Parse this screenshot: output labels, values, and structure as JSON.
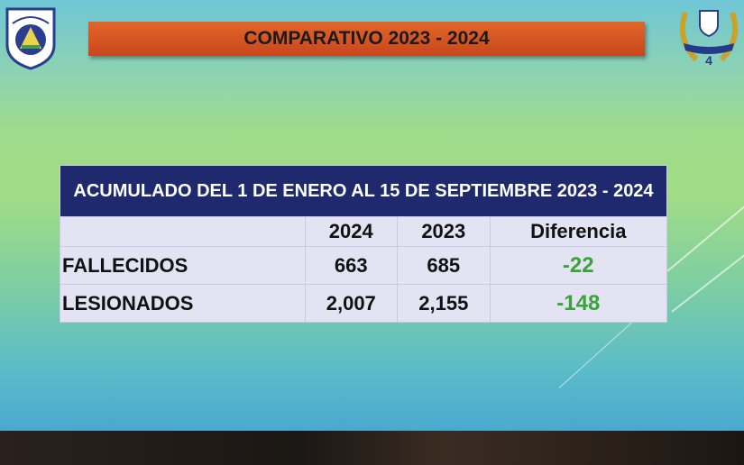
{
  "banner": {
    "title": "COMPARATIVO 2023 - 2024"
  },
  "logos": {
    "left": "POLICIA NACIONAL",
    "right": "ANIVERSARIO 4"
  },
  "table": {
    "title": "ACUMULADO DEL 1 DE ENERO AL 15 DE SEPTIEMBRE 2023 - 2024",
    "headers": [
      "",
      "2024",
      "2023",
      "Diferencia"
    ],
    "rows": [
      {
        "label": "FALLECIDOS",
        "y2024": "663",
        "y2023": "685",
        "diff": "-22"
      },
      {
        "label": "LESIONADOS",
        "y2024": "2,007",
        "y2023": "2,155",
        "diff": "-148"
      }
    ]
  },
  "colors": {
    "banner": "#d4521f",
    "table_header": "#1f2a6e",
    "negative": "#3aa33a"
  }
}
